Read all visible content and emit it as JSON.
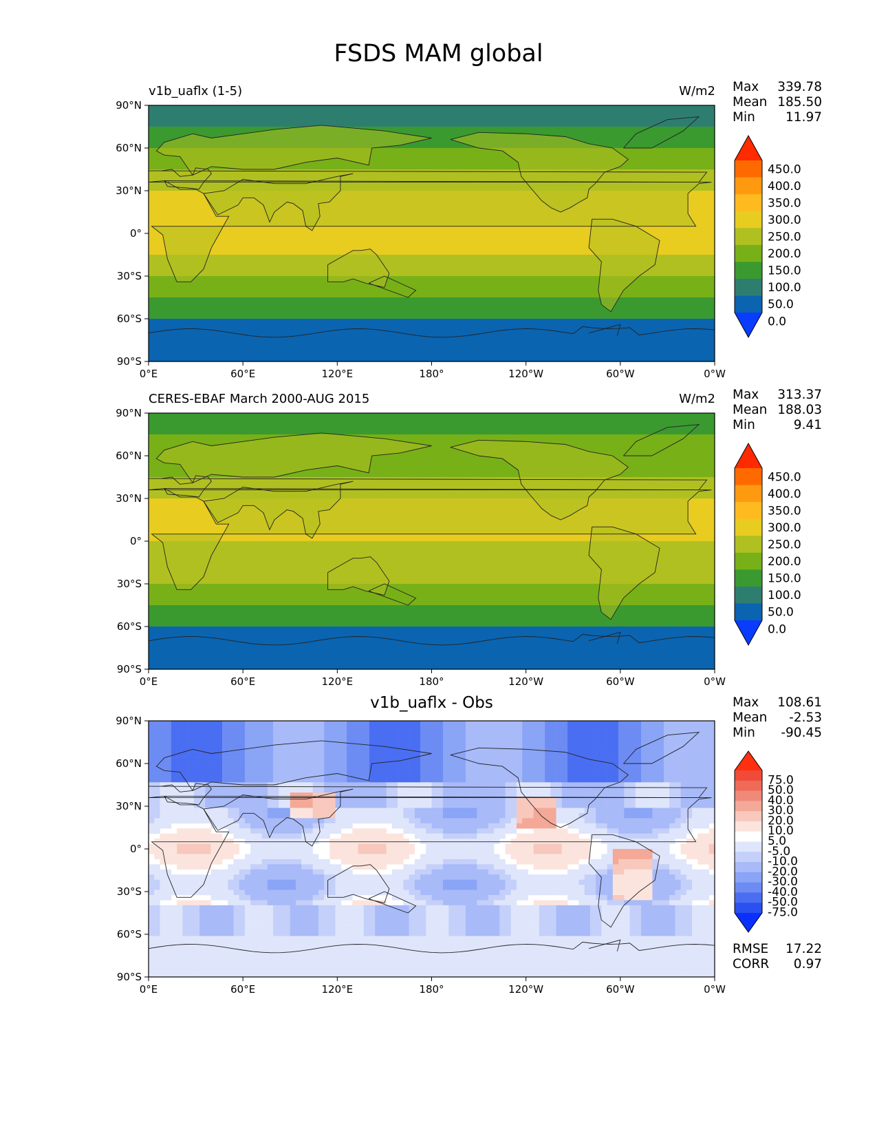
{
  "title": "FSDS MAM global",
  "x_ticks": [
    "0°E",
    "60°E",
    "120°E",
    "180°",
    "120°W",
    "60°W",
    "0°W"
  ],
  "y_ticks": [
    "90°N",
    "60°N",
    "30°N",
    "0°",
    "30°S",
    "60°S",
    "90°S"
  ],
  "panels": [
    {
      "title_left": "v1b_uaflx (1-5)",
      "units": "W/m2",
      "stats": {
        "max_label": "Max",
        "max": "339.78",
        "mean_label": "Mean",
        "mean": "185.50",
        "min_label": "Min",
        "min": "11.97"
      },
      "colorbar": {
        "labels": [
          "450.0",
          "400.0",
          "350.0",
          "300.0",
          "250.0",
          "200.0",
          "150.0",
          "100.0",
          "50.0",
          "0.0"
        ],
        "colors": [
          "#ff2a00",
          "#ff6a00",
          "#ff9a10",
          "#ffba20",
          "#e8cc20",
          "#b0c020",
          "#78b018",
          "#3a9a30",
          "#2e7e70",
          "#0a64b0",
          "#0a3cff"
        ]
      }
    },
    {
      "title_left": "CERES-EBAF March 2000-AUG 2015",
      "units": "W/m2",
      "stats": {
        "max_label": "Max",
        "max": "313.37",
        "mean_label": "Mean",
        "mean": "188.03",
        "min_label": "Min",
        "min": "9.41"
      },
      "colorbar": {
        "labels": [
          "450.0",
          "400.0",
          "350.0",
          "300.0",
          "250.0",
          "200.0",
          "150.0",
          "100.0",
          "50.0",
          "0.0"
        ],
        "colors": [
          "#ff2a00",
          "#ff6a00",
          "#ff9a10",
          "#ffba20",
          "#e8cc20",
          "#b0c020",
          "#78b018",
          "#3a9a30",
          "#2e7e70",
          "#0a64b0",
          "#0a3cff"
        ]
      }
    },
    {
      "title_center": "v1b_uaflx - Obs",
      "stats": {
        "max_label": "Max",
        "max": "108.61",
        "mean_label": "Mean",
        "mean": "-2.53",
        "min_label": "Min",
        "min": "-90.45"
      },
      "colorbar": {
        "labels": [
          "75.0",
          "50.0",
          "40.0",
          "30.0",
          "20.0",
          "10.0",
          "5.0",
          "-5.0",
          "-10.0",
          "-20.0",
          "-30.0",
          "-40.0",
          "-50.0",
          "-75.0"
        ],
        "colors": [
          "#ff3010",
          "#f04a38",
          "#f06a58",
          "#f08a78",
          "#f4a898",
          "#f8c8bc",
          "#fce4de",
          "#ffffff",
          "#dfe6fb",
          "#c4d0fa",
          "#a8baf8",
          "#8aa4f6",
          "#6c8cf4",
          "#4a6ef2",
          "#2a50f0",
          "#0a30ff"
        ]
      },
      "rmse_label": "RMSE",
      "rmse": "17.22",
      "corr_label": "CORR",
      "corr": "0.97"
    }
  ],
  "chart_data": [
    {
      "type": "heatmap",
      "title": "v1b_uaflx (1-5)",
      "units": "W/m2",
      "xlabel": "",
      "ylabel": "",
      "xlim": [
        0,
        360
      ],
      "ylim": [
        -90,
        90
      ],
      "stats": {
        "max": 339.78,
        "mean": 185.5,
        "min": 11.97
      },
      "zonal_bands_lat": [
        90,
        75,
        60,
        45,
        30,
        15,
        0,
        -15,
        -30,
        -45,
        -60,
        -75,
        -90
      ],
      "approx_values_by_band": [
        90,
        120,
        150,
        200,
        260,
        270,
        250,
        230,
        175,
        110,
        40,
        20
      ],
      "color_levels": [
        0,
        50,
        100,
        150,
        200,
        250,
        300,
        350,
        400,
        450
      ]
    },
    {
      "type": "heatmap",
      "title": "CERES-EBAF March 2000-AUG 2015",
      "units": "W/m2",
      "xlabel": "",
      "ylabel": "",
      "xlim": [
        0,
        360
      ],
      "ylim": [
        -90,
        90
      ],
      "stats": {
        "max": 313.37,
        "mean": 188.03,
        "min": 9.41
      },
      "zonal_bands_lat": [
        90,
        75,
        60,
        45,
        30,
        15,
        0,
        -15,
        -30,
        -45,
        -60,
        -75,
        -90
      ],
      "approx_values_by_band": [
        100,
        150,
        180,
        210,
        260,
        260,
        240,
        225,
        180,
        120,
        40,
        20
      ],
      "color_levels": [
        0,
        50,
        100,
        150,
        200,
        250,
        300,
        350,
        400,
        450
      ]
    },
    {
      "type": "heatmap",
      "title": "v1b_uaflx - Obs",
      "xlabel": "",
      "ylabel": "",
      "xlim": [
        0,
        360
      ],
      "ylim": [
        -90,
        90
      ],
      "stats": {
        "max": 108.61,
        "mean": -2.53,
        "min": -90.45,
        "rmse": 17.22,
        "corr": 0.97
      },
      "color_levels": [
        -75,
        -50,
        -40,
        -30,
        -20,
        -10,
        -5,
        5,
        10,
        20,
        30,
        40,
        50,
        75
      ]
    }
  ]
}
